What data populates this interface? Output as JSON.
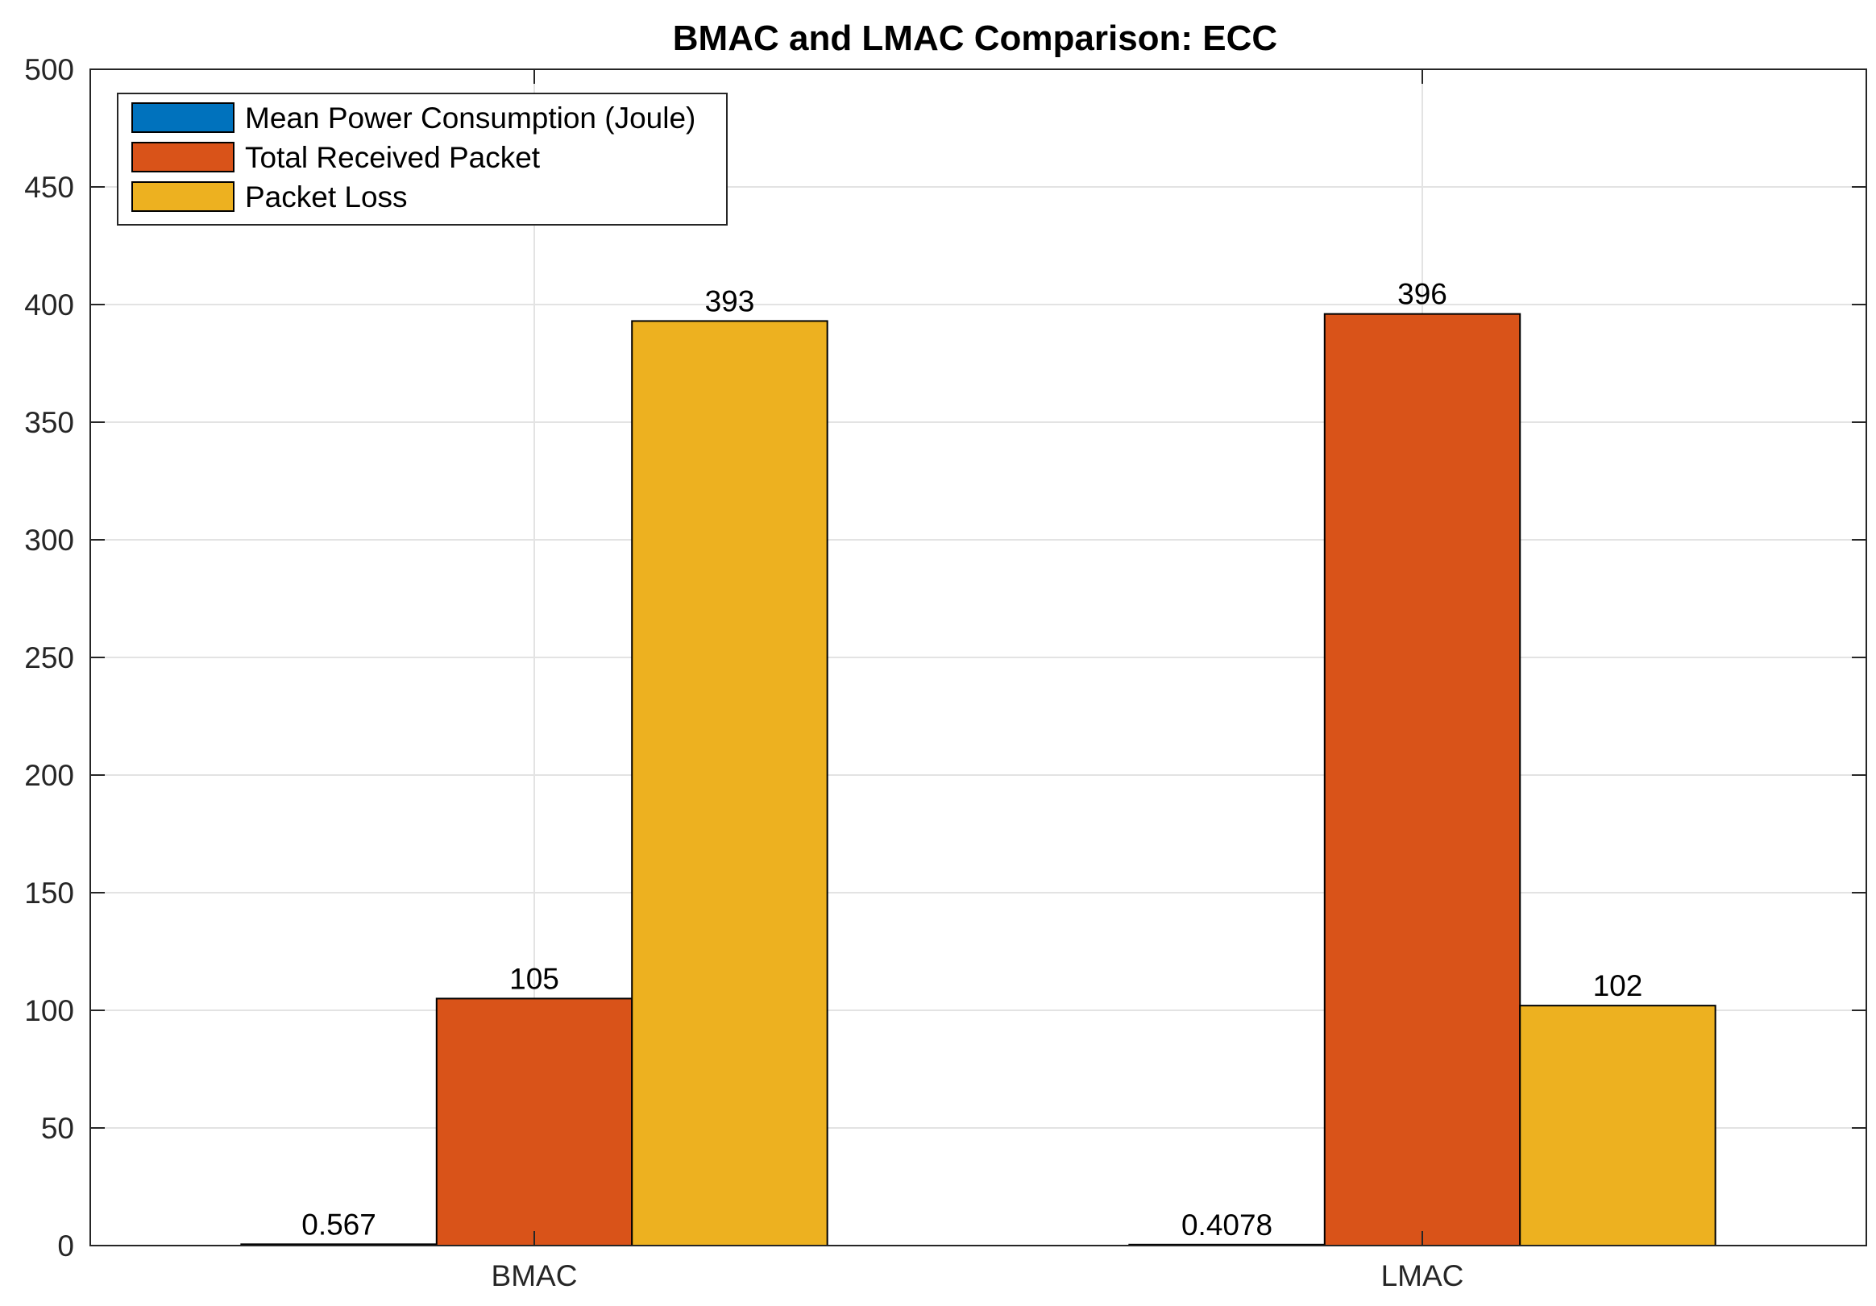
{
  "chart_data": {
    "type": "bar",
    "title": "BMAC and LMAC Comparison: ECC",
    "xlabel": "",
    "ylabel": "",
    "categories": [
      "BMAC",
      "LMAC"
    ],
    "series": [
      {
        "name": "Mean Power Consumption (Joule)",
        "values": [
          0.567,
          0.4078
        ],
        "labels": [
          "0.567",
          "0.4078"
        ],
        "color": "#0072BD"
      },
      {
        "name": "Total Received Packet",
        "values": [
          105,
          396
        ],
        "labels": [
          "105",
          "396"
        ],
        "color": "#D95319"
      },
      {
        "name": "Packet Loss",
        "values": [
          393,
          102
        ],
        "labels": [
          "393",
          "102"
        ],
        "color": "#EDB120"
      }
    ],
    "ylim": [
      0,
      500
    ],
    "yticks": [
      0,
      50,
      100,
      150,
      200,
      250,
      300,
      350,
      400,
      450,
      500
    ],
    "grid": true,
    "legend_position": "top-left"
  }
}
